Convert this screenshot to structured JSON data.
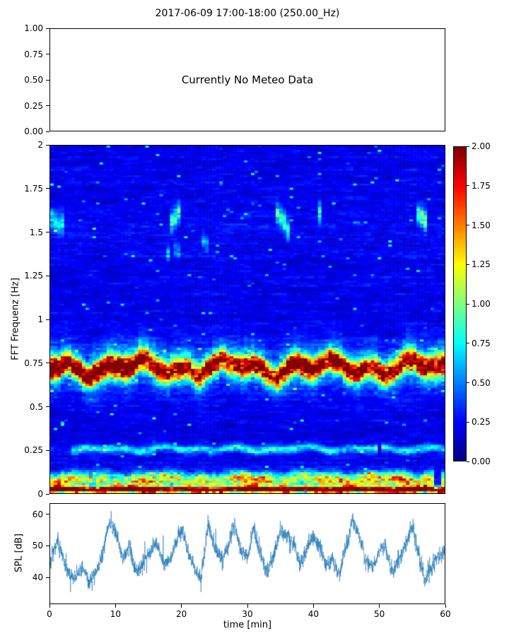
{
  "chart_data": [
    {
      "id": "meteo",
      "type": "line",
      "title": "2017-06-09 17:00-18:00 (250.00_Hz)",
      "annotation": "Currently No Meteo Data",
      "ylim": [
        0.0,
        1.0
      ],
      "ytick_values": [
        1.0,
        0.75,
        0.5,
        0.25,
        0.0
      ],
      "ytick_labels": [
        "1.00",
        "0.75",
        "0.50",
        "0.25",
        "0.00"
      ],
      "series": []
    },
    {
      "id": "spectrogram",
      "type": "heatmap",
      "ylabel": "FFT Frequenz [Hz]",
      "xlim": [
        0,
        60
      ],
      "ylim": [
        0,
        2
      ],
      "ytick_values": [
        2,
        1.75,
        1.5,
        1.25,
        1,
        0.75,
        0.5,
        0.25,
        0
      ],
      "ytick_labels": [
        "2",
        "1.75",
        "1.5",
        "1.25",
        "1",
        "0.75",
        "0.5",
        "0.25",
        "0"
      ],
      "colormap": "jet",
      "colorbar": {
        "vmin": 0.0,
        "vmax": 2.0,
        "tick_values": [
          2.0,
          1.75,
          1.5,
          1.25,
          1.0,
          0.75,
          0.5,
          0.25,
          0.0
        ],
        "tick_labels": [
          "2.00",
          "1.75",
          "1.50",
          "1.25",
          "1.00",
          "0.75",
          "0.50",
          "0.25",
          "0.00"
        ]
      },
      "background_level": 0.06,
      "background_noise": 0.3,
      "bands": [
        {
          "center_hz": 0.015,
          "sigma_hz": 0.012,
          "level": 2.2,
          "level_var": 0.5,
          "wobble_hz": 0.004,
          "presence": 0.95
        },
        {
          "center_hz": 0.07,
          "sigma_hz": 0.03,
          "level": 1.0,
          "level_var": 0.9,
          "wobble_hz": 0.01,
          "presence": 0.85
        },
        {
          "center_hz": 0.25,
          "sigma_hz": 0.015,
          "level": 0.55,
          "level_var": 0.6,
          "wobble_hz": 0.012,
          "presence": 0.7
        },
        {
          "center_hz": 0.72,
          "sigma_hz": 0.04,
          "level": 1.55,
          "level_var": 0.7,
          "wobble_hz": 0.045,
          "presence": 1.0,
          "halo_sigma_hz": 0.09,
          "halo_level": 0.5
        },
        {
          "center_hz": 1.56,
          "sigma_hz": 0.04,
          "level": 0.6,
          "level_var": 0.7,
          "wobble_hz": 0.06,
          "presence": 0.4
        },
        {
          "center_hz": 1.38,
          "sigma_hz": 0.03,
          "level": 0.35,
          "level_var": 0.7,
          "wobble_hz": 0.05,
          "presence": 0.3
        }
      ]
    },
    {
      "id": "spl",
      "type": "line",
      "ylabel": "SPL [dB]",
      "xlabel": "time [min]",
      "xlim": [
        0,
        60
      ],
      "ylim": [
        31.5,
        63.5
      ],
      "ytick_values": [
        60,
        50,
        40
      ],
      "ytick_labels": [
        "60",
        "50",
        "40"
      ],
      "xtick_values": [
        0,
        10,
        20,
        30,
        40,
        50,
        60
      ],
      "xtick_labels": [
        "0",
        "10",
        "20",
        "30",
        "40",
        "50",
        "60"
      ],
      "line_color": "#1f77b4",
      "noise_amplitude_db": 2.5,
      "series": [
        {
          "name": "SPL",
          "x_min": [
            0,
            1,
            2,
            3,
            4,
            5,
            6,
            7,
            8,
            9,
            10,
            11,
            12,
            13,
            14,
            15,
            16,
            17,
            18,
            19,
            20,
            21,
            22,
            23,
            24,
            25,
            26,
            27,
            28,
            29,
            30,
            31,
            32,
            33,
            34,
            35,
            36,
            37,
            38,
            39,
            40,
            41,
            42,
            43,
            44,
            45,
            46,
            47,
            48,
            49,
            50,
            51,
            52,
            53,
            54,
            55,
            56,
            57,
            58,
            59,
            60
          ],
          "y_db": [
            45,
            52,
            46,
            40,
            41,
            43,
            38,
            41,
            47,
            58,
            54,
            46,
            50,
            42,
            44,
            47,
            51,
            46,
            44,
            50,
            56,
            48,
            43,
            40,
            57,
            50,
            45,
            50,
            58,
            48,
            46,
            56,
            47,
            41,
            47,
            55,
            54,
            50,
            44,
            49,
            53,
            50,
            44,
            46,
            40,
            50,
            58,
            53,
            46,
            43,
            48,
            50,
            41,
            45,
            50,
            57,
            48,
            39,
            43,
            47,
            48
          ]
        }
      ]
    }
  ]
}
